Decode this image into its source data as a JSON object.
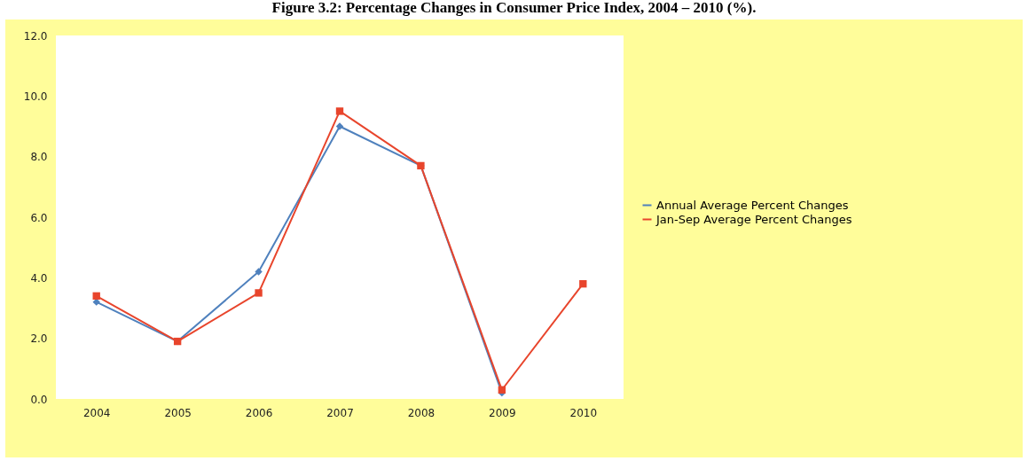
{
  "chart_data": {
    "type": "line",
    "title": "Figure 3.2: Percentage Changes in Consumer Price Index, 2004 – 2010 (%).",
    "categories": [
      "2004",
      "2005",
      "2006",
      "2007",
      "2008",
      "2009",
      "2010"
    ],
    "series": [
      {
        "name": "Annual Average Percent Changes",
        "color": "#4f81bd",
        "marker": "diamond",
        "values": [
          3.2,
          1.9,
          4.2,
          9.0,
          7.7,
          0.2,
          null
        ]
      },
      {
        "name": "Jan-Sep Average Percent Changes",
        "color": "#e8452c",
        "marker": "square",
        "values": [
          3.4,
          1.9,
          3.5,
          9.5,
          7.7,
          0.3,
          3.8
        ]
      }
    ],
    "ylim": [
      0,
      12
    ],
    "yticks": [
      {
        "value": 0,
        "label": "0.0"
      },
      {
        "value": 2,
        "label": "2.0"
      },
      {
        "value": 4,
        "label": "4.0"
      },
      {
        "value": 6,
        "label": "6.0"
      },
      {
        "value": 8,
        "label": "8.0"
      },
      {
        "value": 10,
        "label": "10.0"
      },
      {
        "value": 12,
        "label": "12.0"
      }
    ],
    "legend": "right",
    "grid": false,
    "line_style": "solid"
  }
}
